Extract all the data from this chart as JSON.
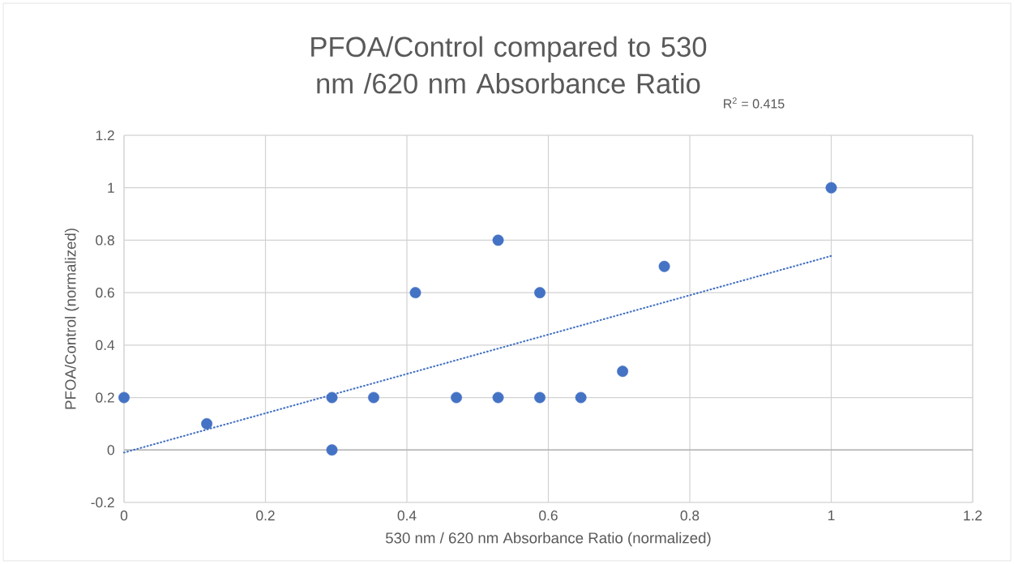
{
  "chart_data": {
    "type": "scatter",
    "title": "PFOA/Control compared to 530 nm /620 nm Absorbance Ratio",
    "xlabel": "530 nm / 620 nm Absorbance Ratio (normalized)",
    "ylabel": "PFOA/Control (normalized)",
    "annotations": [
      "R$^{2}$ = 0.415"
    ],
    "series": [
      {
        "type": "scatter",
        "color": "#4472c4",
        "x": [
          0,
          0.117,
          0.294,
          0.294,
          0.353,
          0.412,
          0.47,
          0.529,
          0.529,
          0.588,
          0.588,
          0.646,
          0.705,
          0.764,
          1.0
        ],
        "values": [
          0.2,
          0.1,
          0.2,
          0,
          0.2,
          0.6,
          0.2,
          0.8,
          0.2,
          0.6,
          0.2,
          0.2,
          0.3,
          0.7,
          1.0
        ]
      },
      {
        "type": "line",
        "color": "#4472c4",
        "line_style": "dotted",
        "marker": "none",
        "x": [
          0,
          1.0
        ],
        "values": [
          -0.01,
          0.74
        ]
      }
    ],
    "xlim": [
      0,
      1.2
    ],
    "ylim": [
      -0.2,
      1.2
    ],
    "xticks": [
      0,
      0.2,
      0.4,
      0.6,
      0.8,
      1,
      1.2
    ],
    "yticks": [
      -0.2,
      0,
      0.2,
      0.4,
      0.6,
      0.8,
      1,
      1.2
    ],
    "grid": true,
    "marker": "circle"
  }
}
